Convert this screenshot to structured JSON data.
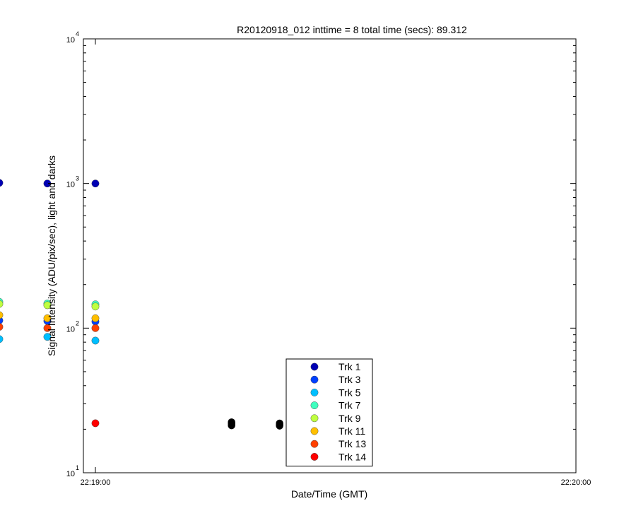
{
  "chart_data": {
    "type": "scatter",
    "title": "R20120918_012 inttime = 8 total time (secs): 89.312",
    "xlabel": "Date/Time (GMT)",
    "ylabel": "Signal Intensity (ADU/pix/sec), light and darks",
    "y_scale": "log",
    "ylim": [
      10,
      10000
    ],
    "xlim_seconds_after_22_18": [
      -0.5,
      61
    ],
    "y_ticks": [
      {
        "base": "10",
        "exp": "1",
        "value": 10
      },
      {
        "base": "10",
        "exp": "2",
        "value": 100
      },
      {
        "base": "10",
        "exp": "3",
        "value": 1000
      },
      {
        "base": "10",
        "exp": "4",
        "value": 10000
      }
    ],
    "x_ticks": [
      {
        "label": "22:19:00",
        "value": 1
      },
      {
        "label": "22:20:00",
        "value": 61
      }
    ],
    "grid": false,
    "legend_position": "bottom-center",
    "legend": [
      {
        "label": "Trk 1",
        "color": "#0000b4"
      },
      {
        "label": "Trk 3",
        "color": "#0040ff"
      },
      {
        "label": "Trk 5",
        "color": "#00bfff"
      },
      {
        "label": "Trk 7",
        "color": "#40ffbf"
      },
      {
        "label": "Trk 9",
        "color": "#bfff40"
      },
      {
        "label": "Trk 11",
        "color": "#ffbf00"
      },
      {
        "label": "Trk 13",
        "color": "#ff4000"
      },
      {
        "label": "Trk 14",
        "color": "#ff0000"
      }
    ],
    "light_x": [
      -22,
      -17,
      -11,
      -5,
      1
    ],
    "series": [
      {
        "color": "#0000b4",
        "y": [
          1000,
          1010,
          1010,
          1000,
          1000
        ]
      },
      {
        "color": "#0040ff",
        "y": [
          110,
          112,
          113,
          112,
          111
        ]
      },
      {
        "color": "#00bfff",
        "y": [
          82,
          86,
          84,
          87,
          82
        ]
      },
      {
        "color": "#40ffbf",
        "y": [
          147,
          145,
          152,
          148,
          146
        ]
      },
      {
        "color": "#bfff40",
        "y": [
          142,
          140,
          147,
          144,
          141
        ]
      },
      {
        "color": "#ffbf00",
        "y": [
          117,
          118,
          123,
          117,
          117
        ]
      },
      {
        "color": "#ff4000",
        "y": [
          100,
          99,
          102,
          100,
          100
        ]
      },
      {
        "color": "#ff0000",
        "y": [
          22,
          22,
          null,
          null,
          22
        ]
      }
    ],
    "dark_x": [
      -34,
      -28,
      18,
      24
    ],
    "dark_color": "#000000",
    "dark_y": [
      [
        21,
        21.3,
        21.6,
        21.9
      ],
      [
        21,
        21.3,
        21.6,
        21.9,
        22.2
      ],
      [
        21.2,
        21.5,
        21.8,
        22.1,
        22.4
      ],
      [
        21.1,
        21.4,
        21.7,
        22
      ]
    ]
  }
}
